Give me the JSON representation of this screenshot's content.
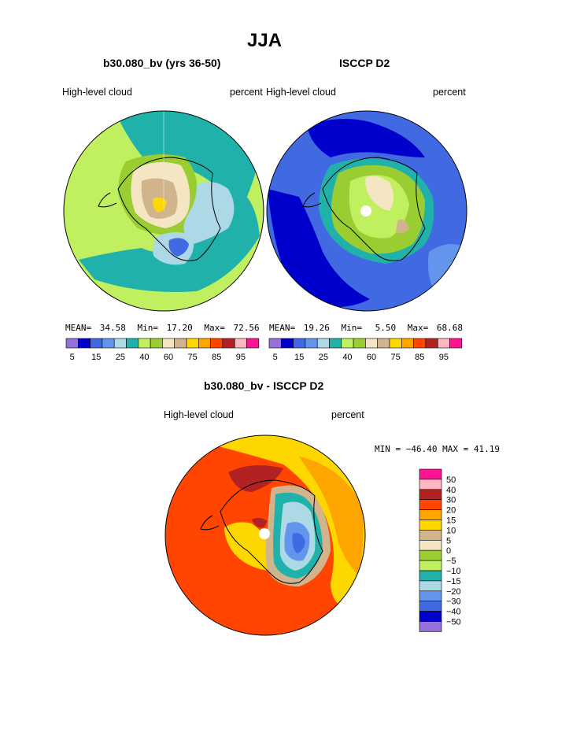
{
  "main_title": "JJA",
  "panels": [
    {
      "title": "b30.080_bv (yrs 36-50)",
      "left_label": "High-level cloud",
      "right_label": "percent",
      "stats": {
        "mean_label": "MEAN=",
        "mean": "34.58",
        "min_label": "Min=",
        "min": "17.20",
        "max_label": "Max=",
        "max": "72.56"
      }
    },
    {
      "title": "ISCCP D2",
      "left_label": "High-level cloud",
      "right_label": "percent",
      "stats": {
        "mean_label": "MEAN=",
        "mean": "19.26",
        "min_label": "Min=",
        "min": "5.50",
        "max_label": "Max=",
        "max": "68.68"
      }
    },
    {
      "title": "b30.080_bv - ISCCP D2",
      "left_label": "High-level cloud",
      "right_label": "percent",
      "stats_line": "MIN = −46.40 MAX =  41.19"
    }
  ],
  "colorbar_top": {
    "colors": [
      "#9370DB",
      "#0000CD",
      "#4169E1",
      "#6495ED",
      "#ADD8E6",
      "#20B2AA",
      "#C0F060",
      "#9ACD32",
      "#F5E6C3",
      "#D2B48C",
      "#FFD700",
      "#FFA500",
      "#FF4500",
      "#B22222",
      "#FFB6C1",
      "#FF1493"
    ],
    "tick_labels": [
      "5",
      "15",
      "25",
      "40",
      "60",
      "75",
      "85",
      "95"
    ]
  },
  "colorbar_diff": {
    "colors": [
      "#FF1493",
      "#FFB6C1",
      "#B22222",
      "#FF4500",
      "#FFA500",
      "#FFD700",
      "#D2B48C",
      "#F5E6C3",
      "#9ACD32",
      "#C0F060",
      "#20B2AA",
      "#ADD8E6",
      "#6495ED",
      "#4169E1",
      "#0000CD",
      "#9370DB"
    ],
    "tick_labels": [
      "50",
      "40",
      "30",
      "20",
      "15",
      "10",
      "5",
      "0",
      "−5",
      "−10",
      "−15",
      "−20",
      "−30",
      "−40",
      "−50"
    ]
  }
}
